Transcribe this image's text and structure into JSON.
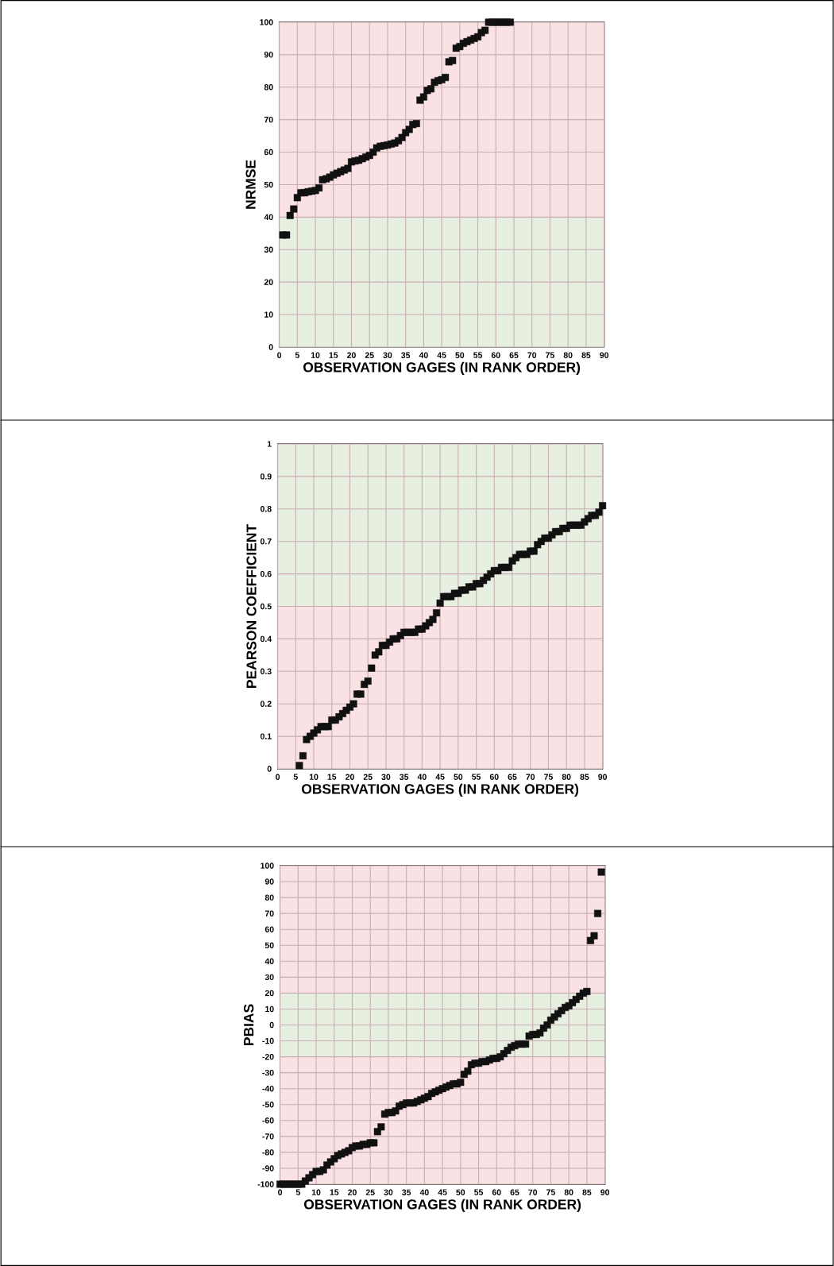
{
  "chart_data": [
    {
      "type": "scatter",
      "xlabel": "OBSERVATION GAGES (IN RANK ORDER)",
      "ylabel": "NRMSE",
      "color": "#111111",
      "marker": "square",
      "grid": true,
      "xlim": [
        0,
        90
      ],
      "ylim": [
        0,
        100
      ],
      "xticks": [
        0,
        5,
        10,
        15,
        20,
        25,
        30,
        35,
        40,
        45,
        50,
        55,
        60,
        65,
        70,
        75,
        80,
        85,
        90
      ],
      "yticks": [
        0,
        10,
        20,
        30,
        40,
        50,
        60,
        70,
        80,
        90,
        100
      ],
      "bands": [
        {
          "axis": "y",
          "from": 0,
          "to": 40,
          "color": "#e6efe0"
        },
        {
          "axis": "y",
          "from": 40,
          "to": 100,
          "color": "#f9e1e4"
        }
      ],
      "x": [
        1,
        2,
        3,
        4,
        5,
        6,
        7,
        8,
        9,
        10,
        11,
        12,
        13,
        14,
        15,
        16,
        17,
        18,
        19,
        20,
        21,
        22,
        23,
        24,
        25,
        26,
        27,
        28,
        29,
        30,
        31,
        32,
        33,
        34,
        35,
        36,
        37,
        38,
        39,
        40,
        41,
        42,
        43,
        44,
        45,
        46,
        47,
        48,
        49,
        50,
        51,
        52,
        53,
        54,
        55,
        56,
        57,
        58,
        59,
        60,
        61,
        62,
        63,
        64
      ],
      "values": [
        34.5,
        34.5,
        40.5,
        42.5,
        46,
        47.5,
        47.5,
        47.8,
        48,
        48.2,
        49,
        51.5,
        51.8,
        52.3,
        53,
        53.5,
        54,
        54.5,
        55,
        57,
        57.3,
        57.5,
        58,
        58.5,
        59,
        60,
        61.3,
        61.8,
        62,
        62.2,
        62.5,
        62.8,
        63.5,
        64.5,
        66,
        67,
        68.5,
        68.8,
        76,
        77,
        79,
        79.5,
        81.5,
        82,
        82.3,
        83,
        87.8,
        88.2,
        92,
        92.5,
        93.5,
        94,
        94.5,
        95,
        95.5,
        96.8,
        97.5,
        100,
        100,
        100,
        100,
        100,
        100,
        100
      ]
    },
    {
      "type": "scatter",
      "xlabel": "OBSERVATION GAGES (IN RANK ORDER)",
      "ylabel": "PEARSON COEFFICIENT",
      "color": "#111111",
      "marker": "square",
      "grid": true,
      "xlim": [
        0,
        90
      ],
      "ylim": [
        0,
        1
      ],
      "xticks": [
        0,
        5,
        10,
        15,
        20,
        25,
        30,
        35,
        40,
        45,
        50,
        55,
        60,
        65,
        70,
        75,
        80,
        85,
        90
      ],
      "yticks": [
        0,
        0.1,
        0.2,
        0.3,
        0.4,
        0.5,
        0.6,
        0.7,
        0.8,
        0.9,
        1
      ],
      "bands": [
        {
          "axis": "y",
          "from": 0,
          "to": 0.5,
          "color": "#f9e1e4"
        },
        {
          "axis": "y",
          "from": 0.5,
          "to": 1,
          "color": "#e6efe0"
        }
      ],
      "x": [
        6,
        7,
        8,
        9,
        10,
        11,
        12,
        13,
        14,
        15,
        16,
        17,
        18,
        19,
        20,
        21,
        22,
        23,
        24,
        25,
        26,
        27,
        28,
        29,
        30,
        31,
        32,
        33,
        34,
        35,
        36,
        37,
        38,
        39,
        40,
        41,
        42,
        43,
        44,
        45,
        46,
        47,
        48,
        49,
        50,
        51,
        52,
        53,
        54,
        55,
        56,
        57,
        58,
        59,
        60,
        61,
        62,
        63,
        64,
        65,
        66,
        67,
        68,
        69,
        70,
        71,
        72,
        73,
        74,
        75,
        76,
        77,
        78,
        79,
        80,
        81,
        82,
        83,
        84,
        85,
        86,
        87,
        88,
        89,
        90
      ],
      "values": [
        0.01,
        0.04,
        0.09,
        0.1,
        0.11,
        0.12,
        0.13,
        0.13,
        0.13,
        0.15,
        0.15,
        0.16,
        0.17,
        0.18,
        0.19,
        0.2,
        0.23,
        0.23,
        0.26,
        0.27,
        0.31,
        0.35,
        0.36,
        0.38,
        0.38,
        0.39,
        0.4,
        0.4,
        0.41,
        0.42,
        0.42,
        0.42,
        0.42,
        0.43,
        0.43,
        0.44,
        0.45,
        0.46,
        0.48,
        0.51,
        0.53,
        0.53,
        0.53,
        0.54,
        0.54,
        0.55,
        0.55,
        0.56,
        0.56,
        0.57,
        0.57,
        0.58,
        0.59,
        0.6,
        0.61,
        0.61,
        0.62,
        0.62,
        0.62,
        0.64,
        0.65,
        0.66,
        0.66,
        0.66,
        0.67,
        0.67,
        0.69,
        0.7,
        0.71,
        0.71,
        0.72,
        0.73,
        0.73,
        0.74,
        0.74,
        0.75,
        0.75,
        0.75,
        0.75,
        0.76,
        0.77,
        0.78,
        0.78,
        0.79,
        0.81
      ]
    },
    {
      "type": "scatter",
      "xlabel": "OBSERVATION GAGES (IN RANK ORDER)",
      "ylabel": "PBIAS",
      "color": "#111111",
      "marker": "square",
      "grid": true,
      "xlim": [
        0,
        90
      ],
      "ylim": [
        -100,
        100
      ],
      "xticks": [
        0,
        5,
        10,
        15,
        20,
        25,
        30,
        35,
        40,
        45,
        50,
        55,
        60,
        65,
        70,
        75,
        80,
        85,
        90
      ],
      "yticks": [
        -100,
        -90,
        -80,
        -70,
        -60,
        -50,
        -40,
        -30,
        -20,
        -10,
        0,
        10,
        20,
        30,
        40,
        50,
        60,
        70,
        80,
        90,
        100
      ],
      "bands": [
        {
          "axis": "y",
          "from": -100,
          "to": -20,
          "color": "#f9e1e4"
        },
        {
          "axis": "y",
          "from": -20,
          "to": 20,
          "color": "#e6efe0"
        },
        {
          "axis": "y",
          "from": 20,
          "to": 100,
          "color": "#f9e1e4"
        }
      ],
      "x": [
        0,
        1,
        2,
        3,
        4,
        5,
        6,
        7,
        8,
        9,
        10,
        11,
        12,
        13,
        14,
        15,
        16,
        17,
        18,
        19,
        20,
        21,
        22,
        23,
        24,
        25,
        26,
        27,
        28,
        29,
        30,
        31,
        32,
        33,
        34,
        35,
        36,
        37,
        38,
        39,
        40,
        41,
        42,
        43,
        44,
        45,
        46,
        47,
        48,
        49,
        50,
        51,
        52,
        53,
        54,
        55,
        56,
        57,
        58,
        59,
        60,
        61,
        62,
        63,
        64,
        65,
        66,
        67,
        68,
        69,
        70,
        71,
        72,
        73,
        74,
        75,
        76,
        77,
        78,
        79,
        80,
        81,
        82,
        83,
        84,
        85,
        86,
        87,
        88,
        89
      ],
      "values": [
        -100,
        -100,
        -100,
        -100,
        -100,
        -100,
        -100,
        -98,
        -96,
        -94,
        -92,
        -92,
        -91,
        -88,
        -86,
        -84,
        -82,
        -81,
        -80,
        -79,
        -77,
        -76,
        -76,
        -75,
        -75,
        -74,
        -74,
        -67,
        -64,
        -56,
        -55,
        -55,
        -54,
        -51,
        -50,
        -49,
        -49,
        -49,
        -48,
        -47,
        -46,
        -45,
        -43,
        -42,
        -41,
        -40,
        -39,
        -38,
        -37,
        -37,
        -36,
        -31,
        -29,
        -25,
        -24,
        -24,
        -23,
        -23,
        -22,
        -21,
        -21,
        -20,
        -18,
        -16,
        -14,
        -13,
        -12,
        -12,
        -12,
        -7,
        -6,
        -6,
        -5,
        -2,
        0,
        3,
        5,
        7,
        9,
        11,
        12,
        14,
        16,
        18,
        20,
        21,
        53,
        56,
        70,
        96
      ]
    }
  ]
}
